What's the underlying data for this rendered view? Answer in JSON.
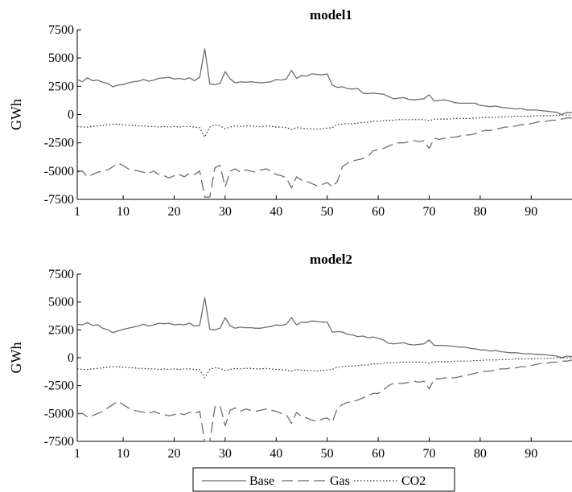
{
  "chart_data": [
    {
      "type": "line",
      "title": "model1",
      "ylabel": "GWh",
      "xlabel": "",
      "xlim": [
        1,
        98
      ],
      "ylim": [
        -7500,
        7500
      ],
      "x_ticks": [
        1,
        10,
        20,
        30,
        40,
        50,
        60,
        70,
        80,
        90
      ],
      "y_ticks": [
        7500,
        5000,
        2500,
        0,
        -2500,
        -5000,
        -7500
      ],
      "x": [
        1,
        2,
        3,
        4,
        5,
        6,
        7,
        8,
        9,
        10,
        11,
        12,
        13,
        14,
        15,
        16,
        17,
        18,
        19,
        20,
        21,
        22,
        23,
        24,
        25,
        26,
        27,
        28,
        29,
        30,
        31,
        32,
        33,
        34,
        35,
        36,
        37,
        38,
        39,
        40,
        41,
        42,
        43,
        44,
        45,
        46,
        47,
        48,
        49,
        50,
        51,
        52,
        53,
        54,
        55,
        56,
        57,
        58,
        59,
        60,
        61,
        62,
        63,
        64,
        65,
        66,
        67,
        68,
        69,
        70,
        71,
        72,
        73,
        74,
        75,
        76,
        77,
        78,
        79,
        80,
        81,
        82,
        83,
        84,
        85,
        86,
        87,
        88,
        89,
        90,
        91,
        92,
        93,
        94,
        95,
        96,
        97,
        98
      ],
      "series": [
        {
          "name": "Base",
          "style": "solid",
          "values": [
            3100,
            2900,
            3250,
            3000,
            3050,
            2850,
            2750,
            2450,
            2600,
            2650,
            2800,
            2900,
            2950,
            3100,
            2950,
            3050,
            3200,
            3250,
            3300,
            3150,
            3200,
            3100,
            3250,
            3000,
            3300,
            5800,
            2700,
            2650,
            2750,
            3800,
            3150,
            2800,
            2900,
            2850,
            2900,
            2850,
            2800,
            2850,
            2900,
            3100,
            3050,
            3150,
            3900,
            3200,
            3450,
            3400,
            3600,
            3550,
            3500,
            3600,
            2600,
            2400,
            2450,
            2300,
            2250,
            2300,
            1900,
            1850,
            1900,
            1850,
            1800,
            1600,
            1400,
            1450,
            1500,
            1350,
            1300,
            1350,
            1400,
            1750,
            1200,
            1250,
            1300,
            1200,
            1050,
            1000,
            1000,
            1000,
            1000,
            800,
            750,
            700,
            750,
            650,
            600,
            550,
            500,
            550,
            400,
            400,
            400,
            350,
            300,
            250,
            200,
            0,
            200,
            150
          ]
        },
        {
          "name": "Gas",
          "style": "dashed",
          "values": [
            -5100,
            -5000,
            -5500,
            -5300,
            -5100,
            -5000,
            -4900,
            -4600,
            -4300,
            -4500,
            -4800,
            -4900,
            -5000,
            -5100,
            -5200,
            -5000,
            -5300,
            -5400,
            -5600,
            -5400,
            -5300,
            -5500,
            -5200,
            -5300,
            -5000,
            -7300,
            -7300,
            -4700,
            -4500,
            -6400,
            -5000,
            -4800,
            -5100,
            -4900,
            -5000,
            -5100,
            -4900,
            -4800,
            -5000,
            -5300,
            -5400,
            -5600,
            -6500,
            -5500,
            -5800,
            -5900,
            -6100,
            -6300,
            -6200,
            -6000,
            -6400,
            -5900,
            -4600,
            -4300,
            -4100,
            -4000,
            -3900,
            -3700,
            -3200,
            -3100,
            -3000,
            -2800,
            -2600,
            -2500,
            -2500,
            -2400,
            -2300,
            -2400,
            -2300,
            -3000,
            -2100,
            -2200,
            -2100,
            -2000,
            -2000,
            -1900,
            -1800,
            -1800,
            -1700,
            -1500,
            -1400,
            -1400,
            -1300,
            -1200,
            -1100,
            -1100,
            -1000,
            -900,
            -900,
            -800,
            -700,
            -600,
            -600,
            -500,
            -500,
            -400,
            -300,
            -300
          ]
        },
        {
          "name": "CO2",
          "style": "dotted",
          "values": [
            -1050,
            -1100,
            -1100,
            -1050,
            -1000,
            -950,
            -900,
            -850,
            -850,
            -900,
            -950,
            -950,
            -1000,
            -1000,
            -1050,
            -1050,
            -1100,
            -1050,
            -1100,
            -1050,
            -1100,
            -1050,
            -1050,
            -1100,
            -1150,
            -2000,
            -1100,
            -900,
            -1000,
            -1250,
            -1100,
            -1000,
            -1050,
            -1000,
            -1000,
            -1050,
            -1050,
            -1000,
            -1050,
            -1100,
            -1100,
            -1150,
            -1300,
            -1150,
            -1200,
            -1250,
            -1250,
            -1300,
            -1250,
            -1200,
            -1150,
            -900,
            -850,
            -800,
            -800,
            -750,
            -700,
            -700,
            -600,
            -600,
            -550,
            -500,
            -500,
            -450,
            -450,
            -450,
            -450,
            -450,
            -450,
            -550,
            -400,
            -400,
            -400,
            -400,
            -350,
            -350,
            -350,
            -350,
            -300,
            -300,
            -250,
            -250,
            -250,
            -200,
            -200,
            -200,
            -150,
            -150,
            -150,
            -150,
            -100,
            -100,
            -100,
            -100,
            -50,
            -50,
            -50,
            -50
          ]
        }
      ]
    },
    {
      "type": "line",
      "title": "model2",
      "ylabel": "GWh",
      "xlabel": "",
      "xlim": [
        1,
        98
      ],
      "ylim": [
        -7500,
        7500
      ],
      "x_ticks": [
        1,
        10,
        20,
        30,
        40,
        50,
        60,
        70,
        80,
        90
      ],
      "y_ticks": [
        7500,
        5000,
        2500,
        0,
        -2500,
        -5000,
        -7500
      ],
      "x": [
        1,
        2,
        3,
        4,
        5,
        6,
        7,
        8,
        9,
        10,
        11,
        12,
        13,
        14,
        15,
        16,
        17,
        18,
        19,
        20,
        21,
        22,
        23,
        24,
        25,
        26,
        27,
        28,
        29,
        30,
        31,
        32,
        33,
        34,
        35,
        36,
        37,
        38,
        39,
        40,
        41,
        42,
        43,
        44,
        45,
        46,
        47,
        48,
        49,
        50,
        51,
        52,
        53,
        54,
        55,
        56,
        57,
        58,
        59,
        60,
        61,
        62,
        63,
        64,
        65,
        66,
        67,
        68,
        69,
        70,
        71,
        72,
        73,
        74,
        75,
        76,
        77,
        78,
        79,
        80,
        81,
        82,
        83,
        84,
        85,
        86,
        87,
        88,
        89,
        90,
        91,
        92,
        93,
        94,
        95,
        96,
        97,
        98
      ],
      "series": [
        {
          "name": "Base",
          "style": "solid",
          "values": [
            3000,
            2950,
            3150,
            2900,
            2950,
            2650,
            2500,
            2250,
            2400,
            2550,
            2650,
            2750,
            2850,
            3000,
            2850,
            2950,
            3100,
            3050,
            3100,
            2950,
            3000,
            2950,
            3100,
            2850,
            2900,
            5400,
            2550,
            2500,
            2650,
            3600,
            2850,
            2650,
            2750,
            2700,
            2700,
            2650,
            2650,
            2750,
            2800,
            2950,
            2900,
            3000,
            3600,
            2950,
            3200,
            3150,
            3300,
            3250,
            3200,
            3200,
            2300,
            2350,
            2300,
            2100,
            2050,
            1900,
            1950,
            1800,
            1850,
            1750,
            1600,
            1300,
            1250,
            1300,
            1350,
            1200,
            1150,
            1200,
            1250,
            1600,
            1100,
            1100,
            1100,
            1050,
            1000,
            950,
            950,
            850,
            800,
            700,
            700,
            600,
            650,
            550,
            500,
            450,
            450,
            400,
            350,
            350,
            300,
            300,
            250,
            200,
            150,
            0,
            150,
            100
          ]
        },
        {
          "name": "Gas",
          "style": "dashed",
          "values": [
            -5050,
            -5000,
            -5300,
            -5200,
            -5000,
            -4800,
            -4500,
            -4200,
            -3900,
            -4200,
            -4500,
            -4700,
            -4800,
            -4900,
            -5000,
            -4800,
            -5000,
            -5100,
            -5200,
            -5100,
            -5000,
            -5100,
            -4900,
            -5000,
            -4800,
            -7500,
            -7500,
            -4400,
            -4300,
            -6100,
            -4700,
            -4500,
            -4800,
            -4600,
            -4700,
            -4800,
            -4700,
            -4600,
            -4700,
            -4800,
            -5000,
            -5100,
            -5900,
            -4900,
            -5300,
            -5400,
            -5600,
            -5700,
            -5500,
            -5400,
            -5800,
            -4500,
            -4200,
            -4000,
            -3900,
            -3800,
            -3600,
            -3400,
            -3200,
            -3200,
            -2900,
            -2500,
            -2300,
            -2300,
            -2300,
            -2200,
            -2100,
            -2200,
            -2100,
            -2800,
            -1900,
            -1900,
            -1800,
            -1800,
            -1800,
            -1700,
            -1600,
            -1500,
            -1400,
            -1300,
            -1200,
            -1200,
            -1100,
            -1000,
            -1000,
            -900,
            -900,
            -800,
            -800,
            -700,
            -600,
            -500,
            -500,
            -400,
            -400,
            -300,
            -300,
            -200
          ]
        },
        {
          "name": "CO2",
          "style": "dotted",
          "values": [
            -1000,
            -1050,
            -1050,
            -1000,
            -950,
            -900,
            -850,
            -800,
            -800,
            -850,
            -900,
            -900,
            -950,
            -950,
            -1000,
            -1000,
            -1050,
            -1000,
            -1050,
            -1000,
            -1050,
            -1000,
            -1000,
            -1050,
            -1050,
            -1800,
            -1050,
            -900,
            -950,
            -1150,
            -1050,
            -950,
            -1000,
            -950,
            -950,
            -1000,
            -1000,
            -950,
            -1000,
            -1050,
            -1050,
            -1100,
            -1200,
            -1050,
            -1100,
            -1150,
            -1150,
            -1200,
            -1150,
            -1100,
            -1050,
            -850,
            -800,
            -750,
            -750,
            -700,
            -650,
            -650,
            -550,
            -550,
            -500,
            -450,
            -450,
            -400,
            -400,
            -400,
            -400,
            -400,
            -400,
            -500,
            -350,
            -350,
            -350,
            -350,
            -300,
            -300,
            -300,
            -300,
            -250,
            -250,
            -200,
            -200,
            -200,
            -150,
            -150,
            -150,
            -100,
            -100,
            -100,
            -100,
            -50,
            -50,
            -50,
            -50,
            0,
            0,
            0,
            0
          ]
        }
      ]
    }
  ],
  "legend": {
    "position": "bottom-center",
    "entries": [
      "Base",
      "Gas",
      "CO2"
    ]
  },
  "colors": {
    "line": "#6e6e6e",
    "axis": "#000000"
  }
}
